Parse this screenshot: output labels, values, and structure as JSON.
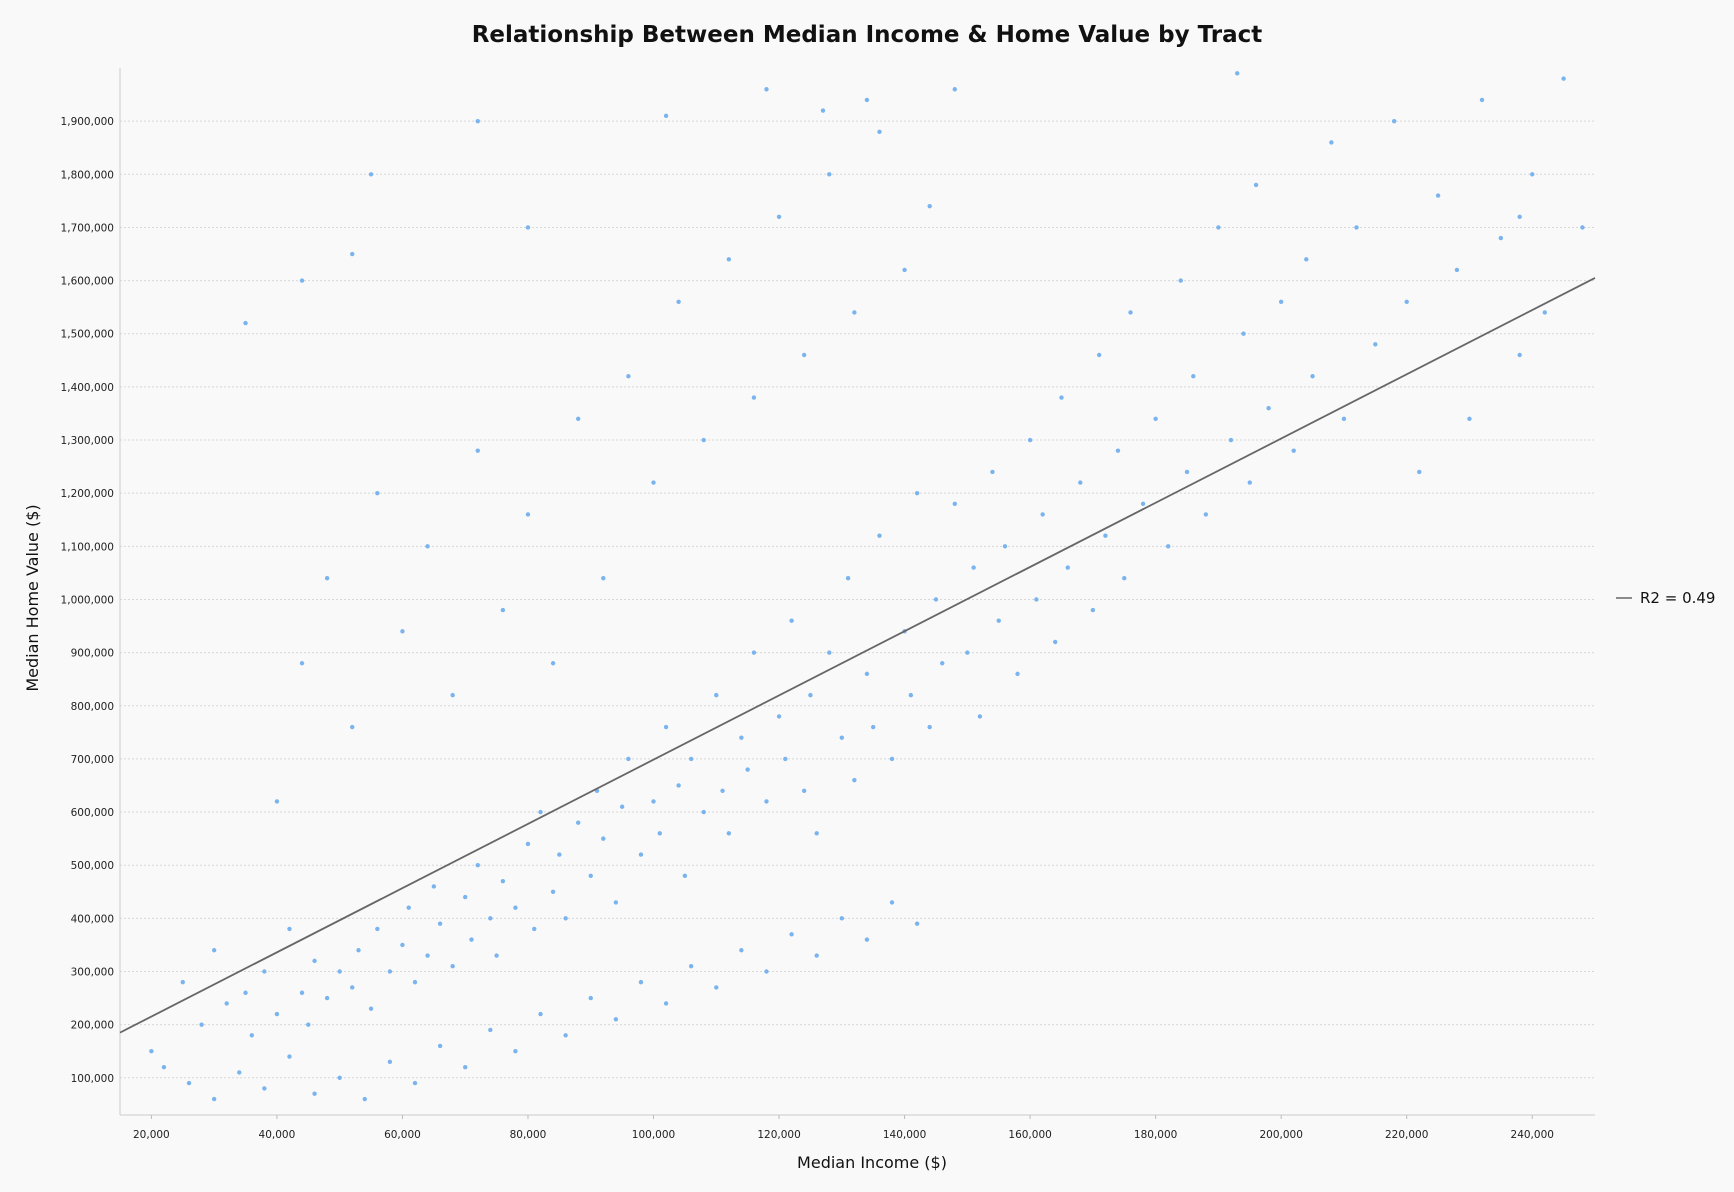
{
  "chart_data": {
    "type": "scatter",
    "title": "Relationship Between Median Income & Home Value by Tract",
    "xlabel": "Median Income ($)",
    "ylabel": "Median Home Value ($)",
    "xlim": [
      15000,
      250000
    ],
    "ylim": [
      30000,
      2000000
    ],
    "x_ticks": [
      20000,
      40000,
      60000,
      80000,
      100000,
      120000,
      140000,
      160000,
      180000,
      200000,
      220000,
      240000
    ],
    "x_tick_labels": [
      "20,000",
      "40,000",
      "60,000",
      "80,000",
      "100,000",
      "120,000",
      "140,000",
      "160,000",
      "180,000",
      "200,000",
      "220,000",
      "240,000"
    ],
    "y_ticks": [
      100000,
      200000,
      300000,
      400000,
      500000,
      600000,
      700000,
      800000,
      900000,
      1000000,
      1100000,
      1200000,
      1300000,
      1400000,
      1500000,
      1600000,
      1700000,
      1800000,
      1900000
    ],
    "y_tick_labels": [
      "100,000",
      "200,000",
      "300,000",
      "400,000",
      "500,000",
      "600,000",
      "700,000",
      "800,000",
      "900,000",
      "1,000,000",
      "1,100,000",
      "1,200,000",
      "1,300,000",
      "1,400,000",
      "1,500,000",
      "1,600,000",
      "1,700,000",
      "1,800,000",
      "1,900,000"
    ],
    "grid": "horizontal",
    "legend_position": "right",
    "point_color": "#7ab4ef",
    "trend_color": "#666666",
    "trendline": {
      "x": [
        15000,
        250000
      ],
      "y": [
        185000,
        1605000
      ]
    },
    "legend_entry": "R2 = 0.49",
    "points": [
      [
        25000,
        280000
      ],
      [
        28000,
        200000
      ],
      [
        30000,
        340000
      ],
      [
        32000,
        240000
      ],
      [
        35000,
        260000
      ],
      [
        36000,
        180000
      ],
      [
        38000,
        300000
      ],
      [
        40000,
        220000
      ],
      [
        42000,
        380000
      ],
      [
        44000,
        260000
      ],
      [
        45000,
        200000
      ],
      [
        46000,
        320000
      ],
      [
        48000,
        250000
      ],
      [
        50000,
        300000
      ],
      [
        52000,
        270000
      ],
      [
        53000,
        340000
      ],
      [
        55000,
        230000
      ],
      [
        56000,
        380000
      ],
      [
        58000,
        300000
      ],
      [
        60000,
        350000
      ],
      [
        61000,
        420000
      ],
      [
        62000,
        280000
      ],
      [
        64000,
        330000
      ],
      [
        65000,
        460000
      ],
      [
        66000,
        390000
      ],
      [
        68000,
        310000
      ],
      [
        70000,
        440000
      ],
      [
        71000,
        360000
      ],
      [
        72000,
        500000
      ],
      [
        74000,
        400000
      ],
      [
        75000,
        330000
      ],
      [
        76000,
        470000
      ],
      [
        78000,
        420000
      ],
      [
        80000,
        540000
      ],
      [
        81000,
        380000
      ],
      [
        82000,
        600000
      ],
      [
        84000,
        450000
      ],
      [
        85000,
        520000
      ],
      [
        86000,
        400000
      ],
      [
        88000,
        580000
      ],
      [
        90000,
        480000
      ],
      [
        91000,
        640000
      ],
      [
        92000,
        550000
      ],
      [
        94000,
        430000
      ],
      [
        95000,
        610000
      ],
      [
        96000,
        700000
      ],
      [
        98000,
        520000
      ],
      [
        100000,
        620000
      ],
      [
        101000,
        560000
      ],
      [
        102000,
        760000
      ],
      [
        104000,
        650000
      ],
      [
        105000,
        480000
      ],
      [
        106000,
        700000
      ],
      [
        108000,
        600000
      ],
      [
        110000,
        820000
      ],
      [
        111000,
        640000
      ],
      [
        112000,
        560000
      ],
      [
        114000,
        740000
      ],
      [
        115000,
        680000
      ],
      [
        116000,
        900000
      ],
      [
        118000,
        620000
      ],
      [
        120000,
        780000
      ],
      [
        121000,
        700000
      ],
      [
        122000,
        960000
      ],
      [
        124000,
        640000
      ],
      [
        125000,
        820000
      ],
      [
        126000,
        560000
      ],
      [
        128000,
        900000
      ],
      [
        130000,
        740000
      ],
      [
        131000,
        1040000
      ],
      [
        132000,
        660000
      ],
      [
        134000,
        860000
      ],
      [
        135000,
        760000
      ],
      [
        136000,
        1120000
      ],
      [
        138000,
        700000
      ],
      [
        140000,
        940000
      ],
      [
        141000,
        820000
      ],
      [
        142000,
        1200000
      ],
      [
        144000,
        760000
      ],
      [
        145000,
        1000000
      ],
      [
        146000,
        880000
      ],
      [
        148000,
        1180000
      ],
      [
        150000,
        900000
      ],
      [
        151000,
        1060000
      ],
      [
        152000,
        780000
      ],
      [
        154000,
        1240000
      ],
      [
        155000,
        960000
      ],
      [
        156000,
        1100000
      ],
      [
        158000,
        860000
      ],
      [
        160000,
        1300000
      ],
      [
        161000,
        1000000
      ],
      [
        162000,
        1160000
      ],
      [
        164000,
        920000
      ],
      [
        165000,
        1380000
      ],
      [
        166000,
        1060000
      ],
      [
        168000,
        1220000
      ],
      [
        170000,
        980000
      ],
      [
        171000,
        1460000
      ],
      [
        172000,
        1120000
      ],
      [
        174000,
        1280000
      ],
      [
        175000,
        1040000
      ],
      [
        176000,
        1540000
      ],
      [
        178000,
        1180000
      ],
      [
        180000,
        1340000
      ],
      [
        182000,
        1100000
      ],
      [
        184000,
        1600000
      ],
      [
        185000,
        1240000
      ],
      [
        186000,
        1420000
      ],
      [
        188000,
        1160000
      ],
      [
        190000,
        1700000
      ],
      [
        192000,
        1300000
      ],
      [
        194000,
        1500000
      ],
      [
        195000,
        1220000
      ],
      [
        196000,
        1780000
      ],
      [
        198000,
        1360000
      ],
      [
        200000,
        1560000
      ],
      [
        202000,
        1280000
      ],
      [
        204000,
        1640000
      ],
      [
        205000,
        1420000
      ],
      [
        208000,
        1860000
      ],
      [
        210000,
        1340000
      ],
      [
        212000,
        1700000
      ],
      [
        215000,
        1480000
      ],
      [
        218000,
        1900000
      ],
      [
        220000,
        1560000
      ],
      [
        222000,
        1240000
      ],
      [
        225000,
        1760000
      ],
      [
        228000,
        1620000
      ],
      [
        230000,
        1340000
      ],
      [
        232000,
        1940000
      ],
      [
        235000,
        1680000
      ],
      [
        238000,
        1460000
      ],
      [
        240000,
        1800000
      ],
      [
        242000,
        1540000
      ],
      [
        245000,
        1980000
      ],
      [
        248000,
        1700000
      ],
      [
        20000,
        150000
      ],
      [
        22000,
        120000
      ],
      [
        26000,
        90000
      ],
      [
        30000,
        60000
      ],
      [
        34000,
        110000
      ],
      [
        38000,
        80000
      ],
      [
        42000,
        140000
      ],
      [
        46000,
        70000
      ],
      [
        50000,
        100000
      ],
      [
        54000,
        60000
      ],
      [
        58000,
        130000
      ],
      [
        62000,
        90000
      ],
      [
        66000,
        160000
      ],
      [
        70000,
        120000
      ],
      [
        74000,
        190000
      ],
      [
        78000,
        150000
      ],
      [
        82000,
        220000
      ],
      [
        86000,
        180000
      ],
      [
        90000,
        250000
      ],
      [
        94000,
        210000
      ],
      [
        98000,
        280000
      ],
      [
        102000,
        240000
      ],
      [
        106000,
        310000
      ],
      [
        110000,
        270000
      ],
      [
        114000,
        340000
      ],
      [
        118000,
        300000
      ],
      [
        122000,
        370000
      ],
      [
        126000,
        330000
      ],
      [
        130000,
        400000
      ],
      [
        134000,
        360000
      ],
      [
        138000,
        430000
      ],
      [
        142000,
        390000
      ],
      [
        40000,
        620000
      ],
      [
        44000,
        880000
      ],
      [
        48000,
        1040000
      ],
      [
        52000,
        760000
      ],
      [
        56000,
        1200000
      ],
      [
        60000,
        940000
      ],
      [
        64000,
        1100000
      ],
      [
        68000,
        820000
      ],
      [
        72000,
        1280000
      ],
      [
        76000,
        980000
      ],
      [
        80000,
        1160000
      ],
      [
        84000,
        880000
      ],
      [
        88000,
        1340000
      ],
      [
        92000,
        1040000
      ],
      [
        96000,
        1420000
      ],
      [
        100000,
        1220000
      ],
      [
        104000,
        1560000
      ],
      [
        108000,
        1300000
      ],
      [
        112000,
        1640000
      ],
      [
        116000,
        1380000
      ],
      [
        120000,
        1720000
      ],
      [
        124000,
        1460000
      ],
      [
        128000,
        1800000
      ],
      [
        132000,
        1540000
      ],
      [
        136000,
        1880000
      ],
      [
        140000,
        1620000
      ],
      [
        144000,
        1740000
      ],
      [
        148000,
        1960000
      ],
      [
        35000,
        1520000
      ],
      [
        44000,
        1600000
      ],
      [
        52000,
        1650000
      ],
      [
        55000,
        1800000
      ],
      [
        72000,
        1900000
      ],
      [
        80000,
        1700000
      ],
      [
        102000,
        1910000
      ],
      [
        118000,
        1960000
      ],
      [
        127000,
        1920000
      ],
      [
        134000,
        1940000
      ],
      [
        193000,
        1990000
      ],
      [
        238000,
        1720000
      ]
    ]
  }
}
